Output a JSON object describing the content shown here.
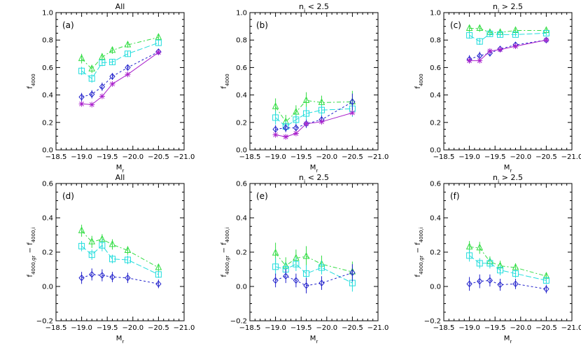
{
  "colors": {
    "green": "#33dd44",
    "cyan": "#22dddd",
    "blue": "#2222cc",
    "magenta": "#aa22cc",
    "axis": "#000000"
  },
  "chart_data": [
    {
      "type": "line",
      "panel": "(a)",
      "title": "All",
      "xlabel": "M",
      "xlabel_sub": "r",
      "ylabel": "f",
      "ylabel_sub": "4000",
      "xlim": [
        -18.5,
        -21.0
      ],
      "ylim": [
        0.0,
        1.0
      ],
      "xticks": [
        -18.5,
        -19.0,
        -19.5,
        -20.0,
        -20.5,
        -21.0
      ],
      "xtick_labels": [
        "−18.5",
        "−19.0",
        "−19.5",
        "−20.0",
        "−20.5",
        "−21.0"
      ],
      "yticks": [
        0.0,
        0.2,
        0.4,
        0.6,
        0.8,
        1.0
      ],
      "ytick_labels": [
        "0.0",
        "0.2",
        "0.4",
        "0.6",
        "0.8",
        "1.0"
      ],
      "series": [
        {
          "color": "green",
          "marker": "triangle",
          "dash": "6,3,2,3",
          "x": [
            -19.0,
            -19.2,
            -19.4,
            -19.6,
            -19.9,
            -20.5
          ],
          "y": [
            0.665,
            0.59,
            0.675,
            0.725,
            0.765,
            0.82
          ],
          "err": [
            0.035,
            0.03,
            0.03,
            0.025,
            0.02,
            0.02
          ]
        },
        {
          "color": "cyan",
          "marker": "square",
          "dash": "8,3",
          "x": [
            -19.0,
            -19.2,
            -19.4,
            -19.6,
            -19.9,
            -20.5
          ],
          "y": [
            0.575,
            0.52,
            0.635,
            0.64,
            0.7,
            0.78
          ],
          "err": [
            0.03,
            0.03,
            0.025,
            0.02,
            0.02,
            0.02
          ]
        },
        {
          "color": "blue",
          "marker": "diamond",
          "dash": "3,3",
          "x": [
            -19.0,
            -19.2,
            -19.4,
            -19.6,
            -19.9,
            -20.5
          ],
          "y": [
            0.385,
            0.405,
            0.46,
            0.535,
            0.6,
            0.715
          ],
          "err": [
            0.03,
            0.03,
            0.03,
            0.025,
            0.02,
            0.02
          ]
        },
        {
          "color": "magenta",
          "marker": "asterisk",
          "dash": "",
          "x": [
            -19.0,
            -19.2,
            -19.4,
            -19.6,
            -19.9,
            -20.5
          ],
          "y": [
            0.335,
            0.33,
            0.39,
            0.48,
            0.55,
            0.71
          ],
          "err": [
            0.0,
            0.0,
            0.0,
            0.0,
            0.0,
            0.0
          ]
        }
      ]
    },
    {
      "type": "line",
      "panel": "(b)",
      "title": "n",
      "title_sub": "i",
      "title_rest": " < 2.5",
      "xlabel": "M",
      "xlabel_sub": "r",
      "ylabel": "f",
      "ylabel_sub": "4000",
      "xlim": [
        -18.5,
        -21.0
      ],
      "ylim": [
        0.0,
        1.0
      ],
      "xticks": [
        -18.5,
        -19.0,
        -19.5,
        -20.0,
        -20.5,
        -21.0
      ],
      "xtick_labels": [
        "−18.5",
        "−19.0",
        "−19.5",
        "−20.0",
        "−20.5",
        "−21.0"
      ],
      "yticks": [
        0.0,
        0.2,
        0.4,
        0.6,
        0.8,
        1.0
      ],
      "ytick_labels": [
        "0.0",
        "0.2",
        "0.4",
        "0.6",
        "0.8",
        "1.0"
      ],
      "series": [
        {
          "color": "green",
          "marker": "triangle",
          "dash": "6,3,2,3",
          "x": [
            -19.0,
            -19.2,
            -19.4,
            -19.6,
            -19.9,
            -20.5
          ],
          "y": [
            0.315,
            0.205,
            0.275,
            0.36,
            0.345,
            0.35
          ],
          "err": [
            0.06,
            0.05,
            0.05,
            0.06,
            0.05,
            0.08
          ]
        },
        {
          "color": "cyan",
          "marker": "square",
          "dash": "8,3",
          "x": [
            -19.0,
            -19.2,
            -19.4,
            -19.6,
            -19.9,
            -20.5
          ],
          "y": [
            0.235,
            0.17,
            0.22,
            0.265,
            0.29,
            0.3
          ],
          "err": [
            0.05,
            0.04,
            0.04,
            0.05,
            0.04,
            0.06
          ]
        },
        {
          "color": "blue",
          "marker": "diamond",
          "dash": "3,3",
          "x": [
            -19.0,
            -19.2,
            -19.4,
            -19.6,
            -19.9,
            -20.5
          ],
          "y": [
            0.15,
            0.16,
            0.16,
            0.19,
            0.22,
            0.35
          ],
          "err": [
            0.03,
            0.03,
            0.03,
            0.03,
            0.03,
            0.06
          ]
        },
        {
          "color": "magenta",
          "marker": "asterisk",
          "dash": "",
          "x": [
            -19.0,
            -19.2,
            -19.4,
            -19.6,
            -19.9,
            -20.5
          ],
          "y": [
            0.11,
            0.095,
            0.12,
            0.19,
            0.205,
            0.27
          ],
          "err": [
            0.0,
            0.0,
            0.0,
            0.0,
            0.0,
            0.0
          ]
        }
      ]
    },
    {
      "type": "line",
      "panel": "(c)",
      "title": "n",
      "title_sub": "i",
      "title_rest": " > 2.5",
      "xlabel": "M",
      "xlabel_sub": "r",
      "ylabel": "f",
      "ylabel_sub": "4000",
      "xlim": [
        -18.5,
        -21.0
      ],
      "ylim": [
        0.0,
        1.0
      ],
      "xticks": [
        -18.5,
        -19.0,
        -19.5,
        -20.0,
        -20.5,
        -21.0
      ],
      "xtick_labels": [
        "−18.5",
        "−19.0",
        "−19.5",
        "−20.0",
        "−20.5",
        "−21.0"
      ],
      "yticks": [
        0.0,
        0.2,
        0.4,
        0.6,
        0.8,
        1.0
      ],
      "ytick_labels": [
        "0.0",
        "0.2",
        "0.4",
        "0.6",
        "0.8",
        "1.0"
      ],
      "series": [
        {
          "color": "green",
          "marker": "triangle",
          "dash": "6,3,2,3",
          "x": [
            -19.0,
            -19.2,
            -19.4,
            -19.6,
            -19.9,
            -20.5
          ],
          "y": [
            0.885,
            0.885,
            0.855,
            0.855,
            0.87,
            0.87
          ],
          "err": [
            0.025,
            0.025,
            0.02,
            0.02,
            0.015,
            0.015
          ]
        },
        {
          "color": "cyan",
          "marker": "square",
          "dash": "8,3",
          "x": [
            -19.0,
            -19.2,
            -19.4,
            -19.6,
            -19.9,
            -20.5
          ],
          "y": [
            0.835,
            0.79,
            0.845,
            0.84,
            0.84,
            0.85
          ],
          "err": [
            0.025,
            0.025,
            0.02,
            0.02,
            0.015,
            0.015
          ]
        },
        {
          "color": "blue",
          "marker": "diamond",
          "dash": "3,3",
          "x": [
            -19.0,
            -19.2,
            -19.4,
            -19.6,
            -19.9,
            -20.5
          ],
          "y": [
            0.66,
            0.685,
            0.705,
            0.735,
            0.765,
            0.8
          ],
          "err": [
            0.03,
            0.03,
            0.025,
            0.02,
            0.02,
            0.02
          ]
        },
        {
          "color": "magenta",
          "marker": "asterisk",
          "dash": "",
          "x": [
            -19.0,
            -19.2,
            -19.4,
            -19.6,
            -19.9,
            -20.5
          ],
          "y": [
            0.65,
            0.65,
            0.72,
            0.73,
            0.755,
            0.8
          ],
          "err": [
            0.0,
            0.0,
            0.0,
            0.0,
            0.0,
            0.0
          ]
        }
      ]
    },
    {
      "type": "line",
      "panel": "(d)",
      "title": "All",
      "xlabel": "M",
      "xlabel_sub": "r",
      "ylabel": "f",
      "ylabel_sub": "4000,gr",
      "ylabel_mid": " − f",
      "ylabel_sub2": "4000,i",
      "xlim": [
        -18.5,
        -21.0
      ],
      "ylim": [
        -0.2,
        0.6
      ],
      "xticks": [
        -18.5,
        -19.0,
        -19.5,
        -20.0,
        -20.5,
        -21.0
      ],
      "xtick_labels": [
        "−18.5",
        "−19.0",
        "−19.5",
        "−20.0",
        "−20.5",
        "−21.0"
      ],
      "yticks": [
        -0.2,
        0.0,
        0.2,
        0.4,
        0.6
      ],
      "ytick_labels": [
        "−0.2",
        "0.0",
        "0.2",
        "0.4",
        "0.6"
      ],
      "series": [
        {
          "color": "green",
          "marker": "triangle",
          "dash": "6,3,2,3",
          "x": [
            -19.0,
            -19.2,
            -19.4,
            -19.6,
            -19.9,
            -20.5
          ],
          "y": [
            0.325,
            0.26,
            0.275,
            0.245,
            0.21,
            0.11
          ],
          "err": [
            0.035,
            0.035,
            0.03,
            0.03,
            0.025,
            0.02
          ]
        },
        {
          "color": "cyan",
          "marker": "square",
          "dash": "8,3",
          "x": [
            -19.0,
            -19.2,
            -19.4,
            -19.6,
            -19.9,
            -20.5
          ],
          "y": [
            0.235,
            0.185,
            0.24,
            0.16,
            0.155,
            0.07
          ],
          "err": [
            0.03,
            0.03,
            0.035,
            0.025,
            0.025,
            0.02
          ]
        },
        {
          "color": "blue",
          "marker": "diamond",
          "dash": "3,3",
          "x": [
            -19.0,
            -19.2,
            -19.4,
            -19.6,
            -19.9,
            -20.5
          ],
          "y": [
            0.05,
            0.07,
            0.065,
            0.055,
            0.05,
            0.015
          ],
          "err": [
            0.035,
            0.035,
            0.035,
            0.03,
            0.03,
            0.025
          ]
        }
      ]
    },
    {
      "type": "line",
      "panel": "(e)",
      "title": "n",
      "title_sub": "i",
      "title_rest": " < 2.5",
      "xlabel": "M",
      "xlabel_sub": "r",
      "ylabel": "f",
      "ylabel_sub": "4000,gr",
      "ylabel_mid": " − f",
      "ylabel_sub2": "4000,i",
      "xlim": [
        -18.5,
        -21.0
      ],
      "ylim": [
        -0.2,
        0.6
      ],
      "xticks": [
        -18.5,
        -19.0,
        -19.5,
        -20.0,
        -20.5,
        -21.0
      ],
      "xtick_labels": [
        "−18.5",
        "−19.0",
        "−19.5",
        "−20.0",
        "−20.5",
        "−21.0"
      ],
      "yticks": [
        -0.2,
        0.0,
        0.2,
        0.4,
        0.6
      ],
      "ytick_labels": [
        "−0.2",
        "0.0",
        "0.2",
        "0.4",
        "0.6"
      ],
      "series": [
        {
          "color": "green",
          "marker": "triangle",
          "dash": "6,3,2,3",
          "x": [
            -19.0,
            -19.2,
            -19.4,
            -19.6,
            -19.9,
            -20.5
          ],
          "y": [
            0.195,
            0.12,
            0.165,
            0.175,
            0.13,
            0.085
          ],
          "err": [
            0.06,
            0.05,
            0.05,
            0.06,
            0.05,
            0.06
          ]
        },
        {
          "color": "cyan",
          "marker": "square",
          "dash": "8,3",
          "x": [
            -19.0,
            -19.2,
            -19.4,
            -19.6,
            -19.9,
            -20.5
          ],
          "y": [
            0.115,
            0.1,
            0.13,
            0.075,
            0.11,
            0.02
          ],
          "err": [
            0.05,
            0.04,
            0.04,
            0.05,
            0.04,
            0.05
          ]
        },
        {
          "color": "blue",
          "marker": "diamond",
          "dash": "3,3",
          "x": [
            -19.0,
            -19.2,
            -19.4,
            -19.6,
            -19.9,
            -20.5
          ],
          "y": [
            0.035,
            0.06,
            0.035,
            0.005,
            0.02,
            0.08
          ],
          "err": [
            0.04,
            0.04,
            0.04,
            0.045,
            0.04,
            0.05
          ]
        }
      ]
    },
    {
      "type": "line",
      "panel": "(f)",
      "title": "n",
      "title_sub": "i",
      "title_rest": " > 2.5",
      "xlabel": "M",
      "xlabel_sub": "r",
      "ylabel": "f",
      "ylabel_sub": "4000,gr",
      "ylabel_mid": " − f",
      "ylabel_sub2": "4000,i",
      "xlim": [
        -18.5,
        -21.0
      ],
      "ylim": [
        -0.2,
        0.6
      ],
      "xticks": [
        -18.5,
        -19.0,
        -19.5,
        -20.0,
        -20.5,
        -21.0
      ],
      "xtick_labels": [
        "−18.5",
        "−19.0",
        "−19.5",
        "−20.0",
        "−20.5",
        "−21.0"
      ],
      "yticks": [
        -0.2,
        0.0,
        0.2,
        0.4,
        0.6
      ],
      "ytick_labels": [
        "−0.2",
        "0.0",
        "0.2",
        "0.4",
        "0.6"
      ],
      "series": [
        {
          "color": "green",
          "marker": "triangle",
          "dash": "6,3,2,3",
          "x": [
            -19.0,
            -19.2,
            -19.4,
            -19.6,
            -19.9,
            -20.5
          ],
          "y": [
            0.23,
            0.225,
            0.145,
            0.12,
            0.11,
            0.06
          ],
          "err": [
            0.035,
            0.035,
            0.03,
            0.03,
            0.025,
            0.02
          ]
        },
        {
          "color": "cyan",
          "marker": "square",
          "dash": "8,3",
          "x": [
            -19.0,
            -19.2,
            -19.4,
            -19.6,
            -19.9,
            -20.5
          ],
          "y": [
            0.18,
            0.135,
            0.135,
            0.095,
            0.075,
            0.035
          ],
          "err": [
            0.035,
            0.03,
            0.03,
            0.03,
            0.025,
            0.02
          ]
        },
        {
          "color": "blue",
          "marker": "diamond",
          "dash": "3,3",
          "x": [
            -19.0,
            -19.2,
            -19.4,
            -19.6,
            -19.9,
            -20.5
          ],
          "y": [
            0.015,
            0.03,
            0.035,
            0.01,
            0.015,
            -0.015
          ],
          "err": [
            0.04,
            0.04,
            0.035,
            0.035,
            0.03,
            0.025
          ]
        }
      ]
    }
  ]
}
